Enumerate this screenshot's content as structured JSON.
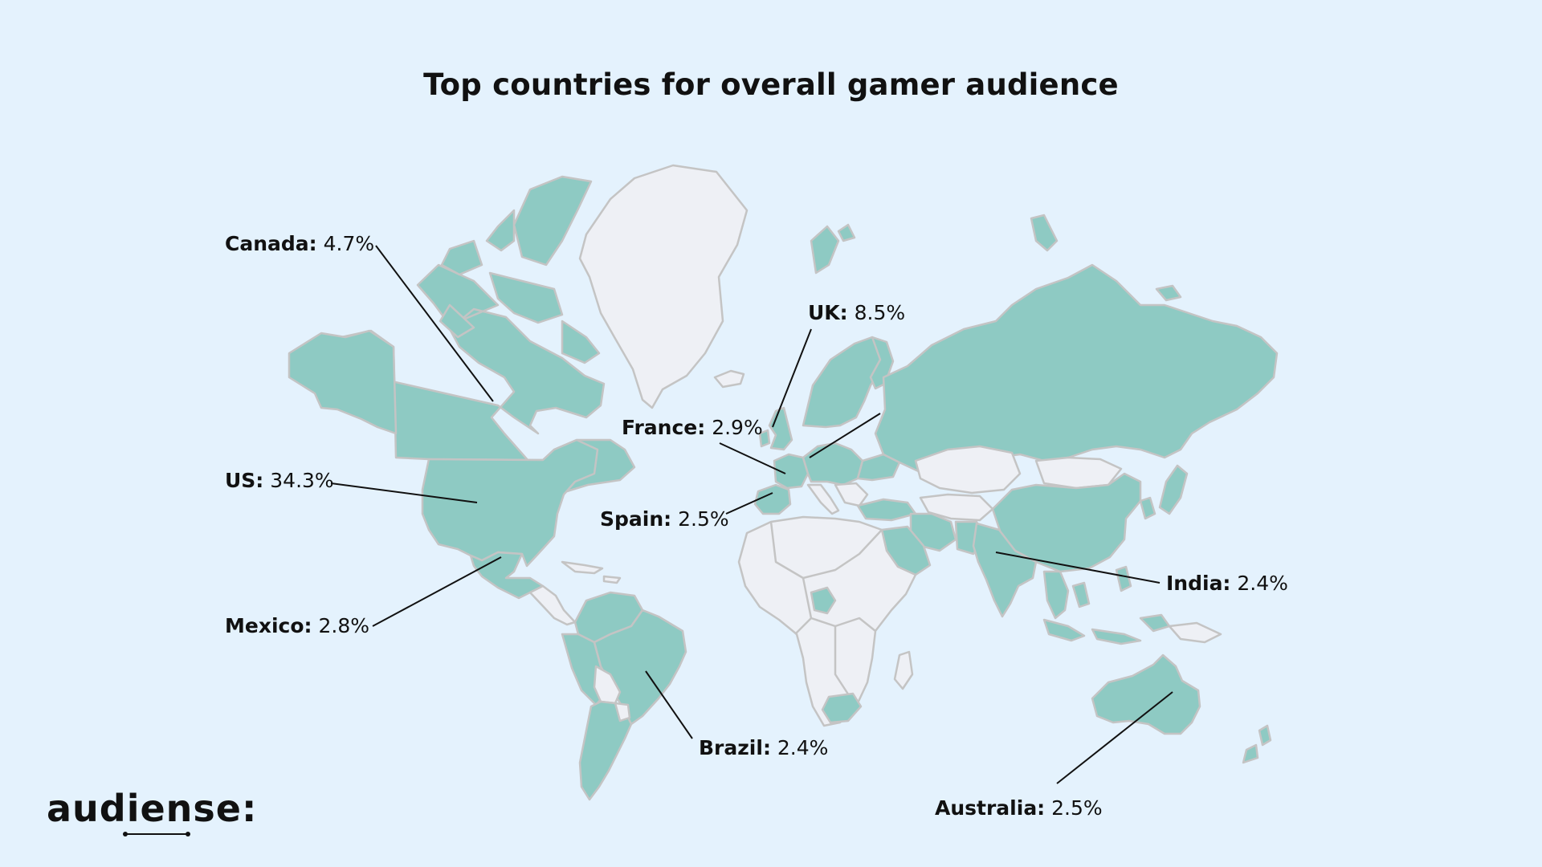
{
  "title": "Top countries for overall gamer audience",
  "brand": {
    "logo_text": "audiense:"
  },
  "colors": {
    "background": "#e4f2fd",
    "highlight_country": "#8ecac3",
    "other_country": "#eef0f5",
    "border": "#c4c4c4",
    "leader_line": "#111111"
  },
  "map_data": {
    "type": "choropleth-world",
    "highlighted_countries": [
      {
        "name": "Canada",
        "value_label": "4.7%",
        "value": 4.7
      },
      {
        "name": "US",
        "value_label": "34.3%",
        "value": 34.3
      },
      {
        "name": "Mexico",
        "value_label": "2.8%",
        "value": 2.8
      },
      {
        "name": "Brazil",
        "value_label": "2.4%",
        "value": 2.4
      },
      {
        "name": "UK",
        "value_label": "8.5%",
        "value": 8.5
      },
      {
        "name": "France",
        "value_label": "2.9%",
        "value": 2.9
      },
      {
        "name": "Spain",
        "value_label": "2.5%",
        "value": 2.5
      },
      {
        "name": "India",
        "value_label": "2.4%",
        "value": 2.4
      },
      {
        "name": "Australia",
        "value_label": "2.5%",
        "value": 2.5
      }
    ]
  },
  "callouts": {
    "canada": {
      "name": "Canada:",
      "value": "4.7%"
    },
    "us": {
      "name": "US:",
      "value": "34.3%"
    },
    "mexico": {
      "name": "Mexico:",
      "value": "2.8%"
    },
    "brazil": {
      "name": "Brazil:",
      "value": "2.4%"
    },
    "uk": {
      "name": "UK:",
      "value": "8.5%"
    },
    "france": {
      "name": "France:",
      "value": "2.9%"
    },
    "spain": {
      "name": "Spain:",
      "value": "2.5%"
    },
    "india": {
      "name": "India:",
      "value": "2.4%"
    },
    "australia": {
      "name": "Australia:",
      "value": "2.5%"
    }
  }
}
